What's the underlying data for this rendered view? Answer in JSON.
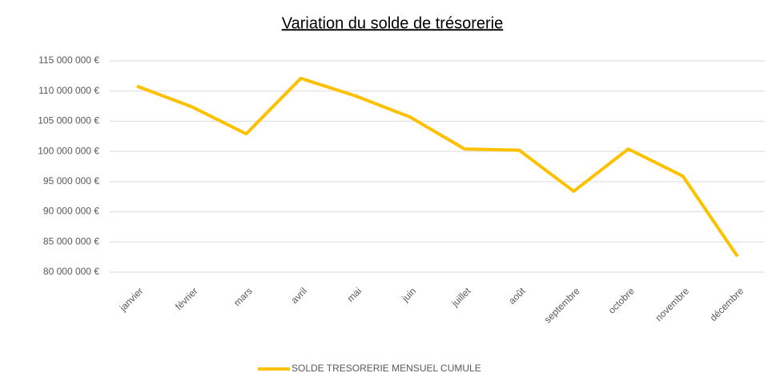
{
  "chart_data": {
    "type": "line",
    "title": "Variation du solde de trésorerie",
    "categories": [
      "janvier",
      "février",
      "mars",
      "avril",
      "mai",
      "juin",
      "juillet",
      "août",
      "septembre",
      "octobre",
      "novembre",
      "décembre"
    ],
    "series": [
      {
        "name": "SOLDE TRESORERIE MENSUEL CUMULE",
        "color": "#ffc000",
        "values": [
          110800000,
          107400000,
          102900000,
          112100000,
          109200000,
          105700000,
          100400000,
          100200000,
          93400000,
          100400000,
          95900000,
          82600000
        ]
      }
    ],
    "ylim": [
      80000000,
      115000000
    ],
    "yticks": [
      {
        "value": 80000000,
        "label": "80 000 000 €"
      },
      {
        "value": 85000000,
        "label": "85 000 000 €"
      },
      {
        "value": 90000000,
        "label": "90 000 000 €"
      },
      {
        "value": 95000000,
        "label": "95 000 000 €"
      },
      {
        "value": 100000000,
        "label": "100 000 000 €"
      },
      {
        "value": 105000000,
        "label": "105 000 000 €"
      },
      {
        "value": 110000000,
        "label": "110 000 000 €"
      },
      {
        "value": 115000000,
        "label": "115 000 000 €"
      }
    ],
    "grid": true,
    "legend": "bottom"
  }
}
